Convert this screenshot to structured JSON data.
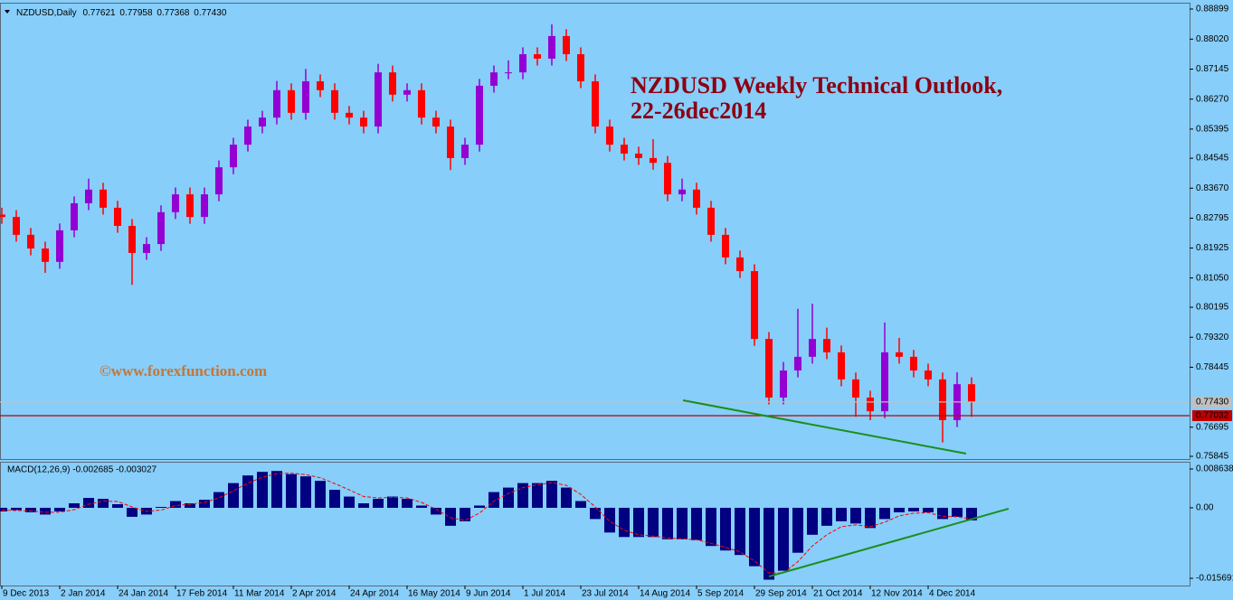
{
  "chart_data": [
    {
      "type": "candlestick",
      "symbol_label": "NZDUSD,Daily",
      "quote": [
        "0.77621",
        "0.77958",
        "0.77368",
        "0.77430"
      ],
      "annotation": [
        "NZDUSD Weekly Technical Outlook,",
        "22-26dec2014"
      ],
      "watermark": "©www.forexfunction.com",
      "up_color": "#9400d3",
      "down_color": "#ff0000",
      "x": [
        0,
        4,
        8,
        12,
        16,
        20,
        24,
        28,
        32,
        36,
        40,
        44,
        48,
        52,
        56,
        60,
        64,
        68,
        72,
        76,
        80,
        84,
        88,
        92,
        96,
        100,
        104,
        108,
        112,
        116,
        120,
        124,
        128,
        132,
        136,
        140,
        144,
        148,
        152,
        156,
        160,
        164,
        168,
        172,
        176,
        180,
        184,
        188,
        192,
        196,
        200,
        204,
        208,
        212,
        216,
        220,
        224,
        228,
        232,
        236,
        240,
        244,
        248,
        252,
        256,
        260,
        264,
        268
      ],
      "open": [
        0.829,
        0.8283,
        0.8231,
        0.8191,
        0.8152,
        0.8244,
        0.8323,
        0.8363,
        0.831,
        0.8257,
        0.8178,
        0.8204,
        0.8297,
        0.8349,
        0.8283,
        0.8349,
        0.8428,
        0.8494,
        0.8547,
        0.8573,
        0.8653,
        0.8587,
        0.8679,
        0.8653,
        0.8587,
        0.8573,
        0.8547,
        0.8705,
        0.864,
        0.8653,
        0.8573,
        0.8547,
        0.8455,
        0.8494,
        0.8666,
        0.8705,
        0.8705,
        0.8758,
        0.8745,
        0.8811,
        0.8758,
        0.8679,
        0.8547,
        0.8494,
        0.8468,
        0.8455,
        0.8441,
        0.8349,
        0.8363,
        0.831,
        0.8231,
        0.8165,
        0.8125,
        0.7927,
        0.7756,
        0.7835,
        0.7875,
        0.7927,
        0.7888,
        0.7809,
        0.7756,
        0.7716,
        0.7888,
        0.7875,
        0.7835,
        0.7809,
        0.769,
        0.7795
      ],
      "high": [
        0.831,
        0.8303,
        0.8251,
        0.8211,
        0.8264,
        0.8343,
        0.8395,
        0.8383,
        0.833,
        0.8277,
        0.8224,
        0.8317,
        0.8369,
        0.8369,
        0.8369,
        0.8448,
        0.8514,
        0.8567,
        0.8593,
        0.868,
        0.8673,
        0.8715,
        0.8699,
        0.8673,
        0.8607,
        0.8593,
        0.873,
        0.8725,
        0.8673,
        0.8673,
        0.8593,
        0.8567,
        0.8514,
        0.8686,
        0.8725,
        0.874,
        0.8778,
        0.8778,
        0.8845,
        0.8831,
        0.8778,
        0.8699,
        0.8567,
        0.8514,
        0.8488,
        0.851,
        0.8461,
        0.8395,
        0.8383,
        0.833,
        0.8251,
        0.8185,
        0.8145,
        0.7947,
        0.786,
        0.8015,
        0.803,
        0.796,
        0.7908,
        0.7829,
        0.7776,
        0.7975,
        0.793,
        0.7895,
        0.7855,
        0.7829,
        0.783,
        0.7815
      ],
      "low": [
        0.8263,
        0.8211,
        0.8171,
        0.812,
        0.8132,
        0.8224,
        0.8303,
        0.829,
        0.8237,
        0.8085,
        0.8158,
        0.8184,
        0.8277,
        0.8263,
        0.8263,
        0.8329,
        0.8408,
        0.8474,
        0.8527,
        0.8553,
        0.8567,
        0.8567,
        0.8633,
        0.8567,
        0.8553,
        0.8527,
        0.8527,
        0.862,
        0.862,
        0.8553,
        0.8527,
        0.842,
        0.8435,
        0.8474,
        0.8646,
        0.8685,
        0.8685,
        0.8725,
        0.8725,
        0.8738,
        0.8659,
        0.8527,
        0.8474,
        0.8448,
        0.8435,
        0.8421,
        0.8329,
        0.8329,
        0.829,
        0.8211,
        0.8145,
        0.8105,
        0.7907,
        0.7736,
        0.7736,
        0.7815,
        0.7855,
        0.7868,
        0.7789,
        0.77,
        0.769,
        0.7696,
        0.7855,
        0.7815,
        0.7789,
        0.7625,
        0.767,
        0.77
      ],
      "close": [
        0.8283,
        0.8231,
        0.8191,
        0.8152,
        0.8244,
        0.8323,
        0.8363,
        0.831,
        0.8257,
        0.8178,
        0.8204,
        0.8297,
        0.8349,
        0.8283,
        0.8349,
        0.8428,
        0.8494,
        0.8547,
        0.8573,
        0.8653,
        0.8587,
        0.8679,
        0.8653,
        0.8587,
        0.8573,
        0.8547,
        0.8705,
        0.864,
        0.8653,
        0.8573,
        0.8547,
        0.8455,
        0.8494,
        0.8666,
        0.8705,
        0.8705,
        0.8758,
        0.8745,
        0.8811,
        0.8758,
        0.8679,
        0.8547,
        0.8494,
        0.8468,
        0.8455,
        0.8441,
        0.8349,
        0.8363,
        0.831,
        0.8231,
        0.8165,
        0.8125,
        0.7927,
        0.7756,
        0.7835,
        0.7875,
        0.7927,
        0.7888,
        0.7809,
        0.7756,
        0.7716,
        0.7888,
        0.7875,
        0.7835,
        0.7809,
        0.769,
        0.7795,
        0.7743
      ],
      "xlim": [
        -0.5,
        328.25
      ],
      "ylim": [
        0.75766,
        0.89057
      ],
      "yticks": [
        0.88899,
        {
          "value": 0.8802,
          "label": "0.88020"
        },
        0.87145,
        {
          "value": 0.8627,
          "label": "0.86270"
        },
        0.85395,
        0.84545,
        {
          "value": 0.8367,
          "label": "0.83670"
        },
        0.82795,
        0.81925,
        {
          "value": 0.8105,
          "label": "0.81050"
        },
        0.80195,
        {
          "value": 0.7932,
          "label": "0.79320"
        },
        0.78445,
        0.76695,
        0.75845
      ],
      "price_lines": [
        {
          "value": 0.7743,
          "label": "0.77430",
          "color": "#c0c0c0"
        },
        {
          "value": 0.77032,
          "label": "0.77032",
          "color": "#c00000"
        }
      ],
      "trendlines": [
        {
          "x": [
            188.25,
            266.5
          ],
          "y": [
            0.7748,
            0.75924
          ],
          "color": "#1a8f1a"
        }
      ]
    },
    {
      "type": "macd",
      "label": "MACD(12,26,9) -0.002685 -0.003027",
      "histogram": {
        "color": "#000080",
        "values": [
          -0.0008,
          -0.0005,
          -0.001,
          -0.0015,
          -0.0008,
          0.001,
          0.0022,
          0.002,
          0.0008,
          -0.002,
          -0.0015,
          0.0002,
          0.0015,
          0.001,
          0.0018,
          0.0035,
          0.0055,
          0.0072,
          0.008,
          0.0082,
          0.0075,
          0.007,
          0.006,
          0.004,
          0.0025,
          0.001,
          0.002,
          0.0025,
          0.002,
          0.0005,
          -0.0015,
          -0.004,
          -0.003,
          0.0005,
          0.0035,
          0.0045,
          0.0055,
          0.0055,
          0.006,
          0.0045,
          0.0015,
          -0.0025,
          -0.0055,
          -0.0065,
          -0.0065,
          -0.0065,
          -0.007,
          -0.007,
          -0.0072,
          -0.0085,
          -0.0095,
          -0.0105,
          -0.013,
          -0.016,
          -0.014,
          -0.01,
          -0.006,
          -0.004,
          -0.003,
          -0.0035,
          -0.0045,
          -0.0025,
          -0.001,
          -0.0008,
          -0.001,
          -0.0025,
          -0.002,
          -0.0028
        ]
      },
      "signal": {
        "color": "#ff0000",
        "values": [
          -0.0005,
          -0.0006,
          -0.0007,
          -0.001,
          -0.001,
          -0.0004,
          0.0008,
          0.0015,
          0.0014,
          0.0002,
          -0.0008,
          -0.0005,
          0.0005,
          0.0008,
          0.0012,
          0.0022,
          0.0038,
          0.0055,
          0.0068,
          0.0076,
          0.0077,
          0.0074,
          0.0067,
          0.0054,
          0.004,
          0.0025,
          0.0022,
          0.0023,
          0.0022,
          0.0012,
          -0.0003,
          -0.0022,
          -0.0028,
          -0.0012,
          0.0015,
          0.0032,
          0.0045,
          0.0051,
          0.0056,
          0.005,
          0.003,
          0.0002,
          -0.003,
          -0.005,
          -0.006,
          -0.0063,
          -0.0067,
          -0.0069,
          -0.0071,
          -0.0079,
          -0.0088,
          -0.0098,
          -0.0118,
          -0.0145,
          -0.0145,
          -0.012,
          -0.0085,
          -0.006,
          -0.0042,
          -0.0038,
          -0.0042,
          -0.0032,
          -0.0018,
          -0.0012,
          -0.0011,
          -0.0019,
          -0.002,
          -0.0025
        ]
      },
      "ylim": [
        -0.0173,
        0.01005
      ],
      "yticks": [
        0.008638,
        {
          "value": 0,
          "label": "0.00"
        },
        -0.015691
      ],
      "xticks": [
        {
          "value": 0,
          "label": "9 Dec 2013"
        },
        {
          "value": 16,
          "label": "2 Jan 2014"
        },
        {
          "value": 32,
          "label": "24 Jan 2014"
        },
        {
          "value": 48,
          "label": "17 Feb 2014"
        },
        {
          "value": 64,
          "label": "11 Mar 2014"
        },
        {
          "value": 80,
          "label": "2 Apr 2014"
        },
        {
          "value": 96,
          "label": "24 Apr 2014"
        },
        {
          "value": 112,
          "label": "16 May 2014"
        },
        {
          "value": 128,
          "label": "9 Jun 2014"
        },
        {
          "value": 144,
          "label": "1 Jul 2014"
        },
        {
          "value": 160,
          "label": "23 Jul 2014"
        },
        {
          "value": 176,
          "label": "14 Aug 2014"
        },
        {
          "value": 192,
          "label": "5 Sep 2014"
        },
        {
          "value": 208,
          "label": "29 Sep 2014"
        },
        {
          "value": 224,
          "label": "21 Oct 2014"
        },
        {
          "value": 240,
          "label": "12 Nov 2014"
        },
        {
          "value": 256,
          "label": "4 Dec 2014"
        }
      ],
      "trendlines": [
        {
          "x": [
            212,
            278.25
          ],
          "y": [
            -0.01529,
            -0.0002
          ],
          "color": "#1a8f1a"
        }
      ]
    }
  ]
}
